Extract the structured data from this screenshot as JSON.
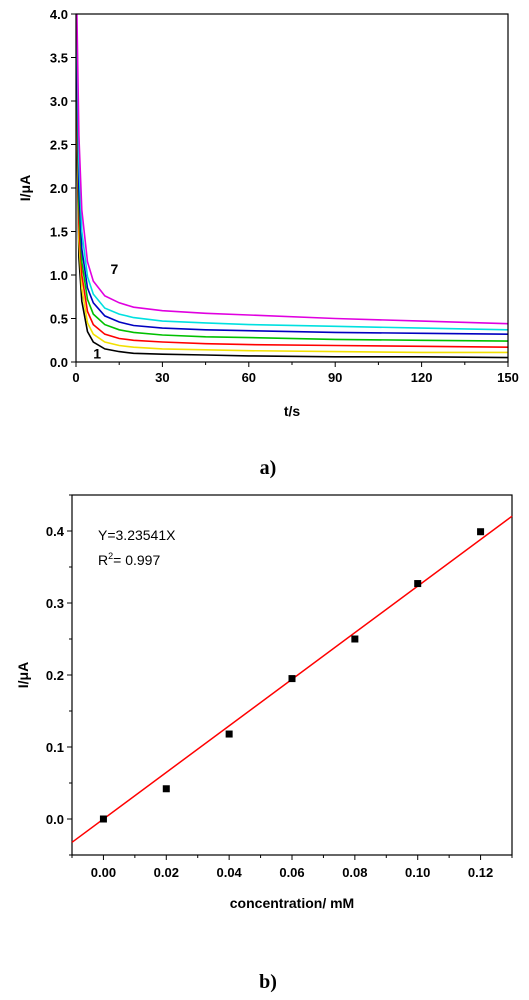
{
  "figure": {
    "label_a": "a)",
    "label_b": "b)"
  },
  "chart_data": [
    {
      "type": "line",
      "xlabel": "t/s",
      "ylabel": "I/μA",
      "xlim": [
        0,
        150
      ],
      "ylim": [
        0,
        4.0
      ],
      "xticks": [
        0,
        30,
        60,
        90,
        120,
        150
      ],
      "yticks": [
        0.0,
        0.5,
        1.0,
        1.5,
        2.0,
        2.5,
        3.0,
        3.5,
        4.0
      ],
      "ytick_labels": [
        "0.0",
        "0.5",
        "1.0",
        "1.5",
        "2.0",
        "2.5",
        "3.0",
        "3.5",
        "4.0"
      ],
      "curve_labels": [
        {
          "text": "1",
          "t": 6,
          "i": 0.1
        },
        {
          "text": "7",
          "t": 12,
          "i": 1.07
        }
      ],
      "series": [
        {
          "color": "#000000",
          "x": [
            0.3,
            1,
            2,
            4,
            6,
            10,
            15,
            20,
            30,
            45,
            60,
            90,
            120,
            150
          ],
          "y": [
            2.6,
            1.2,
            0.7,
            0.35,
            0.23,
            0.15,
            0.12,
            0.1,
            0.09,
            0.08,
            0.07,
            0.06,
            0.06,
            0.05
          ]
        },
        {
          "color": "#f2e000",
          "x": [
            0.3,
            1,
            2,
            4,
            6,
            10,
            15,
            20,
            30,
            45,
            60,
            90,
            120,
            150
          ],
          "y": [
            2.8,
            1.4,
            0.85,
            0.45,
            0.32,
            0.23,
            0.19,
            0.17,
            0.15,
            0.14,
            0.13,
            0.12,
            0.11,
            0.11
          ]
        },
        {
          "color": "#ff0000",
          "x": [
            0.3,
            1,
            2,
            4,
            6,
            10,
            15,
            20,
            30,
            45,
            60,
            90,
            120,
            150
          ],
          "y": [
            3.0,
            1.6,
            1.0,
            0.58,
            0.43,
            0.32,
            0.27,
            0.25,
            0.23,
            0.21,
            0.2,
            0.19,
            0.18,
            0.17
          ]
        },
        {
          "color": "#00c000",
          "x": [
            0.3,
            1,
            2,
            4,
            6,
            10,
            15,
            20,
            30,
            45,
            60,
            90,
            120,
            150
          ],
          "y": [
            3.2,
            1.8,
            1.15,
            0.72,
            0.55,
            0.43,
            0.37,
            0.34,
            0.31,
            0.29,
            0.28,
            0.26,
            0.25,
            0.24
          ]
        },
        {
          "color": "#0000c0",
          "x": [
            0.3,
            1,
            2,
            4,
            6,
            10,
            15,
            20,
            30,
            45,
            60,
            90,
            120,
            150
          ],
          "y": [
            3.5,
            2.0,
            1.3,
            0.85,
            0.68,
            0.53,
            0.46,
            0.42,
            0.39,
            0.37,
            0.36,
            0.34,
            0.33,
            0.32
          ]
        },
        {
          "color": "#00e0e0",
          "x": [
            0.3,
            1,
            2,
            4,
            6,
            10,
            15,
            20,
            30,
            45,
            60,
            90,
            120,
            150
          ],
          "y": [
            3.8,
            2.3,
            1.5,
            0.98,
            0.78,
            0.62,
            0.55,
            0.51,
            0.47,
            0.45,
            0.43,
            0.41,
            0.39,
            0.37
          ]
        },
        {
          "color": "#e000e0",
          "x": [
            0.3,
            1,
            2,
            4,
            6,
            10,
            15,
            20,
            30,
            45,
            60,
            90,
            120,
            150
          ],
          "y": [
            4.0,
            2.6,
            1.75,
            1.15,
            0.93,
            0.76,
            0.68,
            0.63,
            0.59,
            0.56,
            0.54,
            0.5,
            0.47,
            0.44
          ]
        }
      ]
    },
    {
      "type": "scatter",
      "xlabel": "concentration/ mM",
      "ylabel": "I/μA",
      "xlim": [
        -0.01,
        0.13
      ],
      "ylim": [
        -0.05,
        0.45
      ],
      "xticks": [
        0.0,
        0.02,
        0.04,
        0.06,
        0.08,
        0.1,
        0.12
      ],
      "xtick_labels": [
        "0.00",
        "0.02",
        "0.04",
        "0.06",
        "0.08",
        "0.10",
        "0.12"
      ],
      "yticks": [
        0.0,
        0.1,
        0.2,
        0.3,
        0.4
      ],
      "ytick_labels": [
        "0.0",
        "0.1",
        "0.2",
        "0.3",
        "0.4"
      ],
      "annotations": {
        "equation": "Y=3.23541X",
        "r2_prefix": "R",
        "r2_sup": "2",
        "r2_rest": "= 0.997"
      },
      "points": {
        "x": [
          0.0,
          0.02,
          0.04,
          0.06,
          0.08,
          0.1,
          0.12
        ],
        "y": [
          0.0,
          0.042,
          0.118,
          0.195,
          0.25,
          0.327,
          0.399
        ]
      },
      "fit": {
        "slope": 3.23541,
        "intercept": 0,
        "color": "#ff0000"
      }
    }
  ]
}
